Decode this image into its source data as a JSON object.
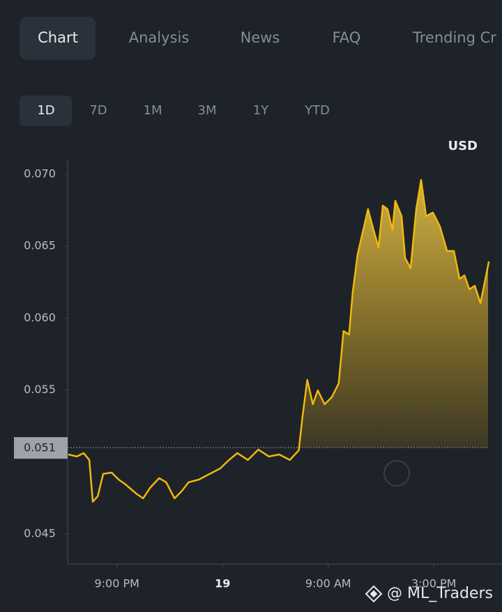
{
  "tabs": [
    "Chart",
    "Analysis",
    "News",
    "FAQ",
    "Trending Cr"
  ],
  "ranges": [
    "1D",
    "7D",
    "1M",
    "3M",
    "1Y",
    "YTD"
  ],
  "watermark": "@ ML_Traders",
  "chart_data": {
    "type": "area",
    "currency": "USD",
    "color": "#f0b90b",
    "reference_line": 0.051,
    "x": [
      18.24,
      18.72,
      19.11,
      19.43,
      19.63,
      19.91,
      20.22,
      20.7,
      21.1,
      21.49,
      22.09,
      22.49,
      22.88,
      23.4,
      23.8,
      24.27,
      24.67,
      25.07,
      25.66,
      26.27,
      26.86,
      27.37,
      27.84,
      28.44,
      29.03,
      29.63,
      30.22,
      30.82,
      31.33,
      31.53,
      31.81,
      32.13,
      32.41,
      32.8,
      33.2,
      33.6,
      33.87,
      34.19,
      34.39,
      34.67,
      34.99,
      35.26,
      35.58,
      35.86,
      36.1,
      36.37,
      36.65,
      36.81,
      37.17,
      37.37,
      37.68,
      38.0,
      38.28,
      38.56,
      38.95,
      39.35,
      39.75,
      40.14,
      40.46,
      40.74,
      41.02,
      41.33,
      41.65,
      41.93,
      42.13
    ],
    "values": [
      0.05052,
      0.05038,
      0.05062,
      0.05014,
      0.04723,
      0.04762,
      0.04917,
      0.04926,
      0.04878,
      0.04844,
      0.04781,
      0.04747,
      0.0482,
      0.04888,
      0.04859,
      0.04747,
      0.04796,
      0.04859,
      0.04878,
      0.04917,
      0.04955,
      0.05014,
      0.05062,
      0.05014,
      0.05086,
      0.05038,
      0.05052,
      0.05014,
      0.05081,
      0.05304,
      0.05571,
      0.05401,
      0.05498,
      0.05401,
      0.0545,
      0.05547,
      0.0591,
      0.05886,
      0.06176,
      0.06443,
      0.06612,
      0.06758,
      0.06612,
      0.06491,
      0.06782,
      0.06758,
      0.06612,
      0.06816,
      0.06709,
      0.06419,
      0.06346,
      0.06758,
      0.06961,
      0.06709,
      0.06734,
      0.06637,
      0.06467,
      0.06467,
      0.06273,
      0.06297,
      0.062,
      0.06225,
      0.06104,
      0.06273,
      0.06394
    ],
    "xlim": [
      18.2,
      42.2
    ],
    "xticks": [
      {
        "value": 21,
        "label": "9:00 PM"
      },
      {
        "value": 27,
        "label": "19"
      },
      {
        "value": 33,
        "label": "9:00 AM"
      },
      {
        "value": 39,
        "label": "3:00 PM"
      }
    ],
    "ylim": [
      0.0429,
      0.071
    ],
    "yticks": [
      0.045,
      0.055,
      {
        "value": 0.06,
        "label": "0.060"
      },
      0.065,
      {
        "value": 0.07,
        "label": "0.070"
      }
    ]
  }
}
